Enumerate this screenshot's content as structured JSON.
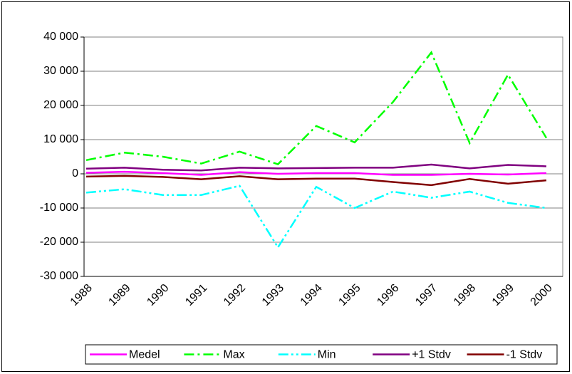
{
  "chart_data": {
    "type": "line",
    "categories": [
      "1988",
      "1989",
      "1990",
      "1991",
      "1992",
      "1993",
      "1994",
      "1995",
      "1996",
      "1997",
      "1998",
      "1999",
      "2000"
    ],
    "series": [
      {
        "name": "Medel",
        "color": "#ff00ff",
        "style": "solid",
        "values": [
          300,
          600,
          200,
          -300,
          500,
          0,
          200,
          200,
          -300,
          -300,
          0,
          -200,
          200
        ]
      },
      {
        "name": "Max",
        "color": "#00ff00",
        "style": "dash-dot",
        "values": [
          4000,
          6200,
          5000,
          3000,
          6500,
          2800,
          14000,
          9200,
          21000,
          35500,
          9000,
          29000,
          10500
        ]
      },
      {
        "name": "Min",
        "color": "#00ffff",
        "style": "dash-dot-dot",
        "values": [
          -5500,
          -4500,
          -6200,
          -6200,
          -3500,
          -21500,
          -3800,
          -10000,
          -5200,
          -7000,
          -5200,
          -8500,
          -10000
        ]
      },
      {
        "name": "+1 Stdv",
        "color": "#800080",
        "style": "solid",
        "values": [
          1500,
          1800,
          1200,
          1000,
          1800,
          1600,
          1700,
          1800,
          1800,
          2700,
          1600,
          2600,
          2200
        ]
      },
      {
        "name": "-1 Stdv",
        "color": "#800000",
        "style": "solid",
        "values": [
          -800,
          -600,
          -900,
          -1600,
          -700,
          -1600,
          -1400,
          -1400,
          -2400,
          -3300,
          -1500,
          -2900,
          -1900
        ]
      }
    ],
    "ylim": [
      -30000,
      40000
    ],
    "yticks": [
      {
        "value": -30000,
        "label": "-30 000"
      },
      {
        "value": -20000,
        "label": "-20 000"
      },
      {
        "value": -10000,
        "label": "-10 000"
      },
      0,
      {
        "value": 10000,
        "label": "10 000"
      },
      {
        "value": 20000,
        "label": "20 000"
      },
      {
        "value": 30000,
        "label": "30 000"
      },
      {
        "value": 40000,
        "label": "40 000"
      }
    ],
    "grid": true,
    "legend": "bottom"
  }
}
